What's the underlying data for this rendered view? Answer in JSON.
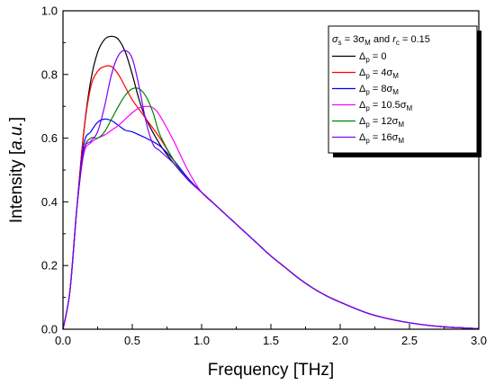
{
  "chart_data": {
    "type": "line",
    "xlabel": "Frequency [THz]",
    "ylabel_main": "Intensity [",
    "ylabel_unit": "a.u.",
    "ylabel_end": "]",
    "xlim": [
      0,
      3
    ],
    "ylim": [
      0,
      1
    ],
    "x_ticks": [
      0,
      0.5,
      1,
      1.5,
      2,
      2.5,
      3
    ],
    "x_tick_labels": [
      "0.0",
      "0.5",
      "1.0",
      "1.5",
      "2.0",
      "2.5",
      "3.0"
    ],
    "y_ticks": [
      0,
      0.2,
      0.4,
      0.6,
      0.8,
      1
    ],
    "y_tick_labels": [
      "0.0",
      "0.2",
      "0.4",
      "0.6",
      "0.8",
      "1.0"
    ],
    "grid": false,
    "legend_position": "top-right",
    "legend_title": {
      "sigma": "σ",
      "sub_s": "s",
      "eq": " = 3σ",
      "sub_M": "M",
      "and": " and ",
      "r": "r",
      "sub_c": "c",
      "rest": " = 0.15"
    },
    "series": [
      {
        "label_main": "Δ",
        "label_sub": "p",
        "label_eq": " = 0",
        "label_sub2": "",
        "color": "#000000",
        "x": [
          0,
          0.05,
          0.1,
          0.15,
          0.2,
          0.25,
          0.3,
          0.35,
          0.4,
          0.45,
          0.5,
          0.55,
          0.6,
          0.7,
          0.8,
          0.9,
          1.0,
          1.1,
          1.2,
          1.3,
          1.4,
          1.5,
          1.6,
          1.7,
          1.8,
          1.9,
          2.0,
          2.2,
          2.4,
          2.6,
          2.8,
          3.0
        ],
        "y": [
          0,
          0.12,
          0.38,
          0.62,
          0.78,
          0.87,
          0.91,
          0.92,
          0.91,
          0.87,
          0.8,
          0.72,
          0.66,
          0.58,
          0.52,
          0.47,
          0.43,
          0.39,
          0.35,
          0.31,
          0.27,
          0.23,
          0.195,
          0.16,
          0.13,
          0.105,
          0.085,
          0.05,
          0.028,
          0.014,
          0.006,
          0.002
        ]
      },
      {
        "label_main": "Δ",
        "label_sub": "p",
        "label_eq": " = 4σ",
        "label_sub2": "M",
        "color": "#ff0000",
        "x": [
          0,
          0.05,
          0.1,
          0.15,
          0.2,
          0.25,
          0.3,
          0.35,
          0.4,
          0.45,
          0.5,
          0.55,
          0.6,
          0.7,
          0.8,
          0.9,
          1.0,
          1.1,
          1.2,
          1.3,
          1.4,
          1.5,
          1.6,
          1.7,
          1.8,
          1.9,
          2.0,
          2.2,
          2.4,
          2.6,
          2.8,
          3.0
        ],
        "y": [
          0,
          0.12,
          0.38,
          0.62,
          0.76,
          0.81,
          0.825,
          0.825,
          0.8,
          0.76,
          0.72,
          0.69,
          0.66,
          0.6,
          0.53,
          0.475,
          0.43,
          0.39,
          0.35,
          0.31,
          0.27,
          0.23,
          0.195,
          0.16,
          0.13,
          0.105,
          0.085,
          0.05,
          0.028,
          0.014,
          0.006,
          0.002
        ]
      },
      {
        "label_main": "Δ",
        "label_sub": "p",
        "label_eq": " = 8σ",
        "label_sub2": "M",
        "color": "#0000ff",
        "x": [
          0,
          0.05,
          0.1,
          0.15,
          0.2,
          0.25,
          0.3,
          0.35,
          0.4,
          0.45,
          0.5,
          0.55,
          0.6,
          0.7,
          0.8,
          0.9,
          1.0,
          1.1,
          1.2,
          1.3,
          1.4,
          1.5,
          1.6,
          1.7,
          1.8,
          1.9,
          2.0,
          2.2,
          2.4,
          2.6,
          2.8,
          3.0
        ],
        "y": [
          0,
          0.12,
          0.38,
          0.58,
          0.62,
          0.65,
          0.66,
          0.655,
          0.64,
          0.625,
          0.62,
          0.61,
          0.6,
          0.575,
          0.53,
          0.475,
          0.43,
          0.39,
          0.35,
          0.31,
          0.27,
          0.23,
          0.195,
          0.16,
          0.13,
          0.105,
          0.085,
          0.05,
          0.028,
          0.014,
          0.006,
          0.002
        ]
      },
      {
        "label_main": "Δ",
        "label_sub": "p",
        "label_eq": " = 10.5σ",
        "label_sub2": "M",
        "color": "#ff00ff",
        "x": [
          0,
          0.05,
          0.1,
          0.15,
          0.2,
          0.25,
          0.3,
          0.35,
          0.4,
          0.45,
          0.5,
          0.55,
          0.6,
          0.65,
          0.7,
          0.8,
          0.9,
          1.0,
          1.1,
          1.2,
          1.3,
          1.4,
          1.5,
          1.6,
          1.7,
          1.8,
          1.9,
          2.0,
          2.2,
          2.4,
          2.6,
          2.8,
          3.0
        ],
        "y": [
          0,
          0.12,
          0.38,
          0.55,
          0.585,
          0.6,
          0.61,
          0.625,
          0.64,
          0.66,
          0.68,
          0.695,
          0.7,
          0.695,
          0.67,
          0.59,
          0.5,
          0.43,
          0.39,
          0.35,
          0.31,
          0.27,
          0.23,
          0.195,
          0.16,
          0.13,
          0.105,
          0.085,
          0.05,
          0.028,
          0.014,
          0.006,
          0.002
        ]
      },
      {
        "label_main": "Δ",
        "label_sub": "p",
        "label_eq": " = 12σ",
        "label_sub2": "M",
        "color": "#008000",
        "x": [
          0,
          0.05,
          0.1,
          0.15,
          0.2,
          0.25,
          0.3,
          0.35,
          0.4,
          0.45,
          0.5,
          0.55,
          0.6,
          0.65,
          0.7,
          0.8,
          0.9,
          1.0,
          1.1,
          1.2,
          1.3,
          1.4,
          1.5,
          1.6,
          1.7,
          1.8,
          1.9,
          2.0,
          2.2,
          2.4,
          2.6,
          2.8,
          3.0
        ],
        "y": [
          0,
          0.12,
          0.38,
          0.56,
          0.6,
          0.6,
          0.62,
          0.66,
          0.7,
          0.735,
          0.755,
          0.755,
          0.73,
          0.68,
          0.61,
          0.53,
          0.47,
          0.43,
          0.39,
          0.35,
          0.31,
          0.27,
          0.23,
          0.195,
          0.16,
          0.13,
          0.105,
          0.085,
          0.05,
          0.028,
          0.014,
          0.006,
          0.002
        ]
      },
      {
        "label_main": "Δ",
        "label_sub": "p",
        "label_eq": " = 16σ",
        "label_sub2": "M",
        "color": "#8000ff",
        "x": [
          0,
          0.05,
          0.1,
          0.15,
          0.2,
          0.25,
          0.3,
          0.35,
          0.4,
          0.45,
          0.5,
          0.55,
          0.6,
          0.65,
          0.7,
          0.8,
          0.9,
          1.0,
          1.1,
          1.2,
          1.3,
          1.4,
          1.5,
          1.6,
          1.7,
          1.8,
          1.9,
          2.0,
          2.2,
          2.4,
          2.6,
          2.8,
          3.0
        ],
        "y": [
          0,
          0.12,
          0.38,
          0.56,
          0.59,
          0.62,
          0.7,
          0.8,
          0.86,
          0.875,
          0.85,
          0.76,
          0.65,
          0.58,
          0.56,
          0.52,
          0.47,
          0.43,
          0.39,
          0.35,
          0.31,
          0.27,
          0.23,
          0.195,
          0.16,
          0.13,
          0.105,
          0.085,
          0.05,
          0.028,
          0.014,
          0.006,
          0.002
        ]
      }
    ]
  }
}
